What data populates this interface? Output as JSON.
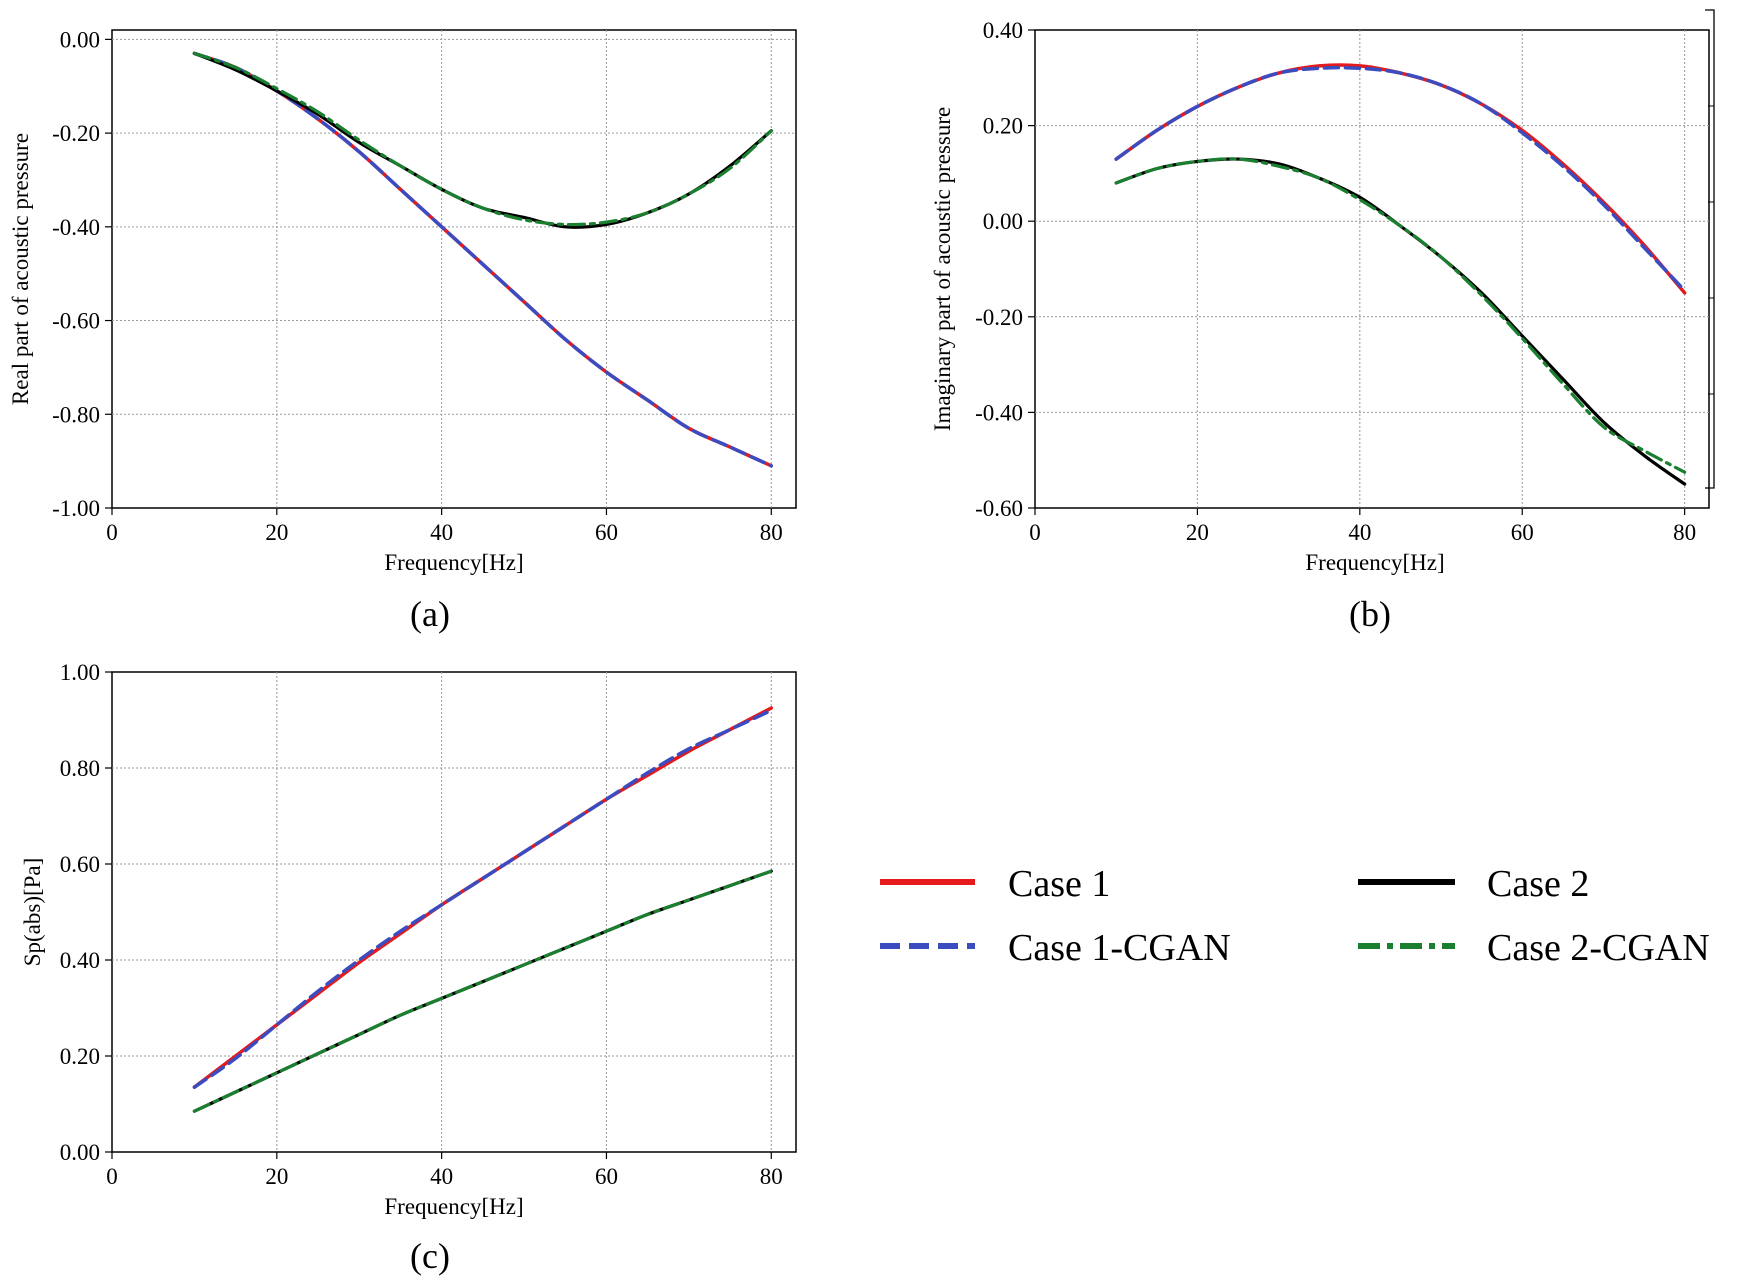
{
  "legend": {
    "entries": [
      {
        "label": "Case 1",
        "color": "#e41a1c",
        "style": "solid"
      },
      {
        "label": "Case 1-CGAN",
        "color": "#3a4cc0",
        "style": "dashed"
      },
      {
        "label": "Case 2",
        "color": "#000000",
        "style": "solid"
      },
      {
        "label": "Case 2-CGAN",
        "color": "#1a7f2e",
        "style": "dashdot"
      }
    ]
  },
  "chart_data": [
    {
      "id": "a",
      "type": "line",
      "caption": "(a)",
      "xlabel": "Frequency[Hz]",
      "ylabel": "Real part of acoustic pressure",
      "xlim": [
        0,
        83
      ],
      "ylim": [
        -1.0,
        0.02
      ],
      "xticks": [
        0,
        20,
        40,
        60,
        80
      ],
      "xtick_labels": [
        "0",
        "20",
        "40",
        "60",
        "80"
      ],
      "yticks": [
        0.0,
        -0.2,
        -0.4,
        -0.6,
        -0.8,
        -1.0
      ],
      "ytick_labels": [
        "0.00",
        "-0.20",
        "-0.40",
        "-0.60",
        "-0.80",
        "-1.00"
      ],
      "grid": true,
      "x": [
        10,
        15,
        20,
        25,
        30,
        35,
        40,
        45,
        50,
        55,
        60,
        65,
        70,
        75,
        80
      ],
      "series": [
        {
          "name": "Case 1",
          "values": [
            -0.03,
            -0.06,
            -0.11,
            -0.17,
            -0.24,
            -0.32,
            -0.4,
            -0.48,
            -0.56,
            -0.64,
            -0.71,
            -0.77,
            -0.83,
            -0.87,
            -0.91
          ]
        },
        {
          "name": "Case 1-CGAN",
          "values": [
            -0.03,
            -0.06,
            -0.11,
            -0.17,
            -0.24,
            -0.32,
            -0.4,
            -0.48,
            -0.56,
            -0.64,
            -0.71,
            -0.77,
            -0.83,
            -0.87,
            -0.91
          ]
        },
        {
          "name": "Case 2",
          "values": [
            -0.03,
            -0.065,
            -0.11,
            -0.16,
            -0.22,
            -0.27,
            -0.32,
            -0.36,
            -0.38,
            -0.4,
            -0.395,
            -0.37,
            -0.33,
            -0.27,
            -0.195
          ]
        },
        {
          "name": "Case 2-CGAN",
          "values": [
            -0.03,
            -0.06,
            -0.105,
            -0.155,
            -0.215,
            -0.27,
            -0.32,
            -0.36,
            -0.385,
            -0.395,
            -0.39,
            -0.37,
            -0.33,
            -0.275,
            -0.195
          ]
        }
      ]
    },
    {
      "id": "b",
      "type": "line",
      "caption": "(b)",
      "xlabel": "Frequency[Hz]",
      "ylabel": "Imaginary part of acoustic pressure",
      "xlim": [
        0,
        83
      ],
      "ylim": [
        -0.6,
        0.4
      ],
      "xticks": [
        0,
        20,
        40,
        60,
        80
      ],
      "xtick_labels": [
        "0",
        "20",
        "40",
        "60",
        "80"
      ],
      "yticks": [
        0.4,
        0.2,
        0.0,
        -0.2,
        -0.4,
        -0.6
      ],
      "ytick_labels": [
        "0.40",
        "0.20",
        "0.00",
        "-0.20",
        "-0.40",
        "-0.60"
      ],
      "grid": true,
      "x": [
        10,
        15,
        20,
        25,
        30,
        35,
        40,
        45,
        50,
        55,
        60,
        65,
        70,
        75,
        80
      ],
      "series": [
        {
          "name": "Case 1",
          "values": [
            0.13,
            0.19,
            0.24,
            0.28,
            0.31,
            0.325,
            0.325,
            0.31,
            0.285,
            0.245,
            0.19,
            0.12,
            0.04,
            -0.05,
            -0.15
          ]
        },
        {
          "name": "Case 1-CGAN",
          "values": [
            0.13,
            0.19,
            0.24,
            0.28,
            0.31,
            0.32,
            0.32,
            0.31,
            0.285,
            0.245,
            0.185,
            0.115,
            0.035,
            -0.055,
            -0.145
          ]
        },
        {
          "name": "Case 2",
          "values": [
            0.08,
            0.11,
            0.125,
            0.13,
            0.12,
            0.09,
            0.05,
            -0.01,
            -0.075,
            -0.15,
            -0.24,
            -0.33,
            -0.42,
            -0.49,
            -0.55
          ]
        },
        {
          "name": "Case 2-CGAN",
          "values": [
            0.08,
            0.11,
            0.125,
            0.13,
            0.115,
            0.09,
            0.045,
            -0.01,
            -0.075,
            -0.155,
            -0.245,
            -0.34,
            -0.43,
            -0.48,
            -0.525
          ]
        }
      ]
    },
    {
      "id": "c",
      "type": "line",
      "caption": "(c)",
      "xlabel": "Frequency[Hz]",
      "ylabel": "Sp(abs)[Pa]",
      "xlim": [
        0,
        83
      ],
      "ylim": [
        0.0,
        1.0
      ],
      "xticks": [
        0,
        20,
        40,
        60,
        80
      ],
      "xtick_labels": [
        "0",
        "20",
        "40",
        "60",
        "80"
      ],
      "yticks": [
        1.0,
        0.8,
        0.6,
        0.4,
        0.2,
        0.0
      ],
      "ytick_labels": [
        "1.00",
        "0.80",
        "0.60",
        "0.40",
        "0.20",
        "0.00"
      ],
      "grid": true,
      "x": [
        10,
        15,
        20,
        25,
        30,
        35,
        40,
        45,
        50,
        55,
        60,
        65,
        70,
        75,
        80
      ],
      "series": [
        {
          "name": "Case 1",
          "values": [
            0.135,
            0.2,
            0.265,
            0.33,
            0.395,
            0.455,
            0.515,
            0.57,
            0.625,
            0.68,
            0.735,
            0.785,
            0.835,
            0.88,
            0.925
          ]
        },
        {
          "name": "Case 1-CGAN",
          "values": [
            0.135,
            0.195,
            0.265,
            0.335,
            0.4,
            0.46,
            0.515,
            0.57,
            0.625,
            0.68,
            0.735,
            0.79,
            0.84,
            0.88,
            0.92
          ]
        },
        {
          "name": "Case 2",
          "values": [
            0.085,
            0.125,
            0.165,
            0.205,
            0.245,
            0.285,
            0.32,
            0.355,
            0.39,
            0.425,
            0.46,
            0.495,
            0.525,
            0.555,
            0.585
          ]
        },
        {
          "name": "Case 2-CGAN",
          "values": [
            0.085,
            0.125,
            0.165,
            0.205,
            0.245,
            0.285,
            0.32,
            0.355,
            0.39,
            0.425,
            0.46,
            0.495,
            0.525,
            0.555,
            0.585
          ]
        }
      ]
    }
  ]
}
